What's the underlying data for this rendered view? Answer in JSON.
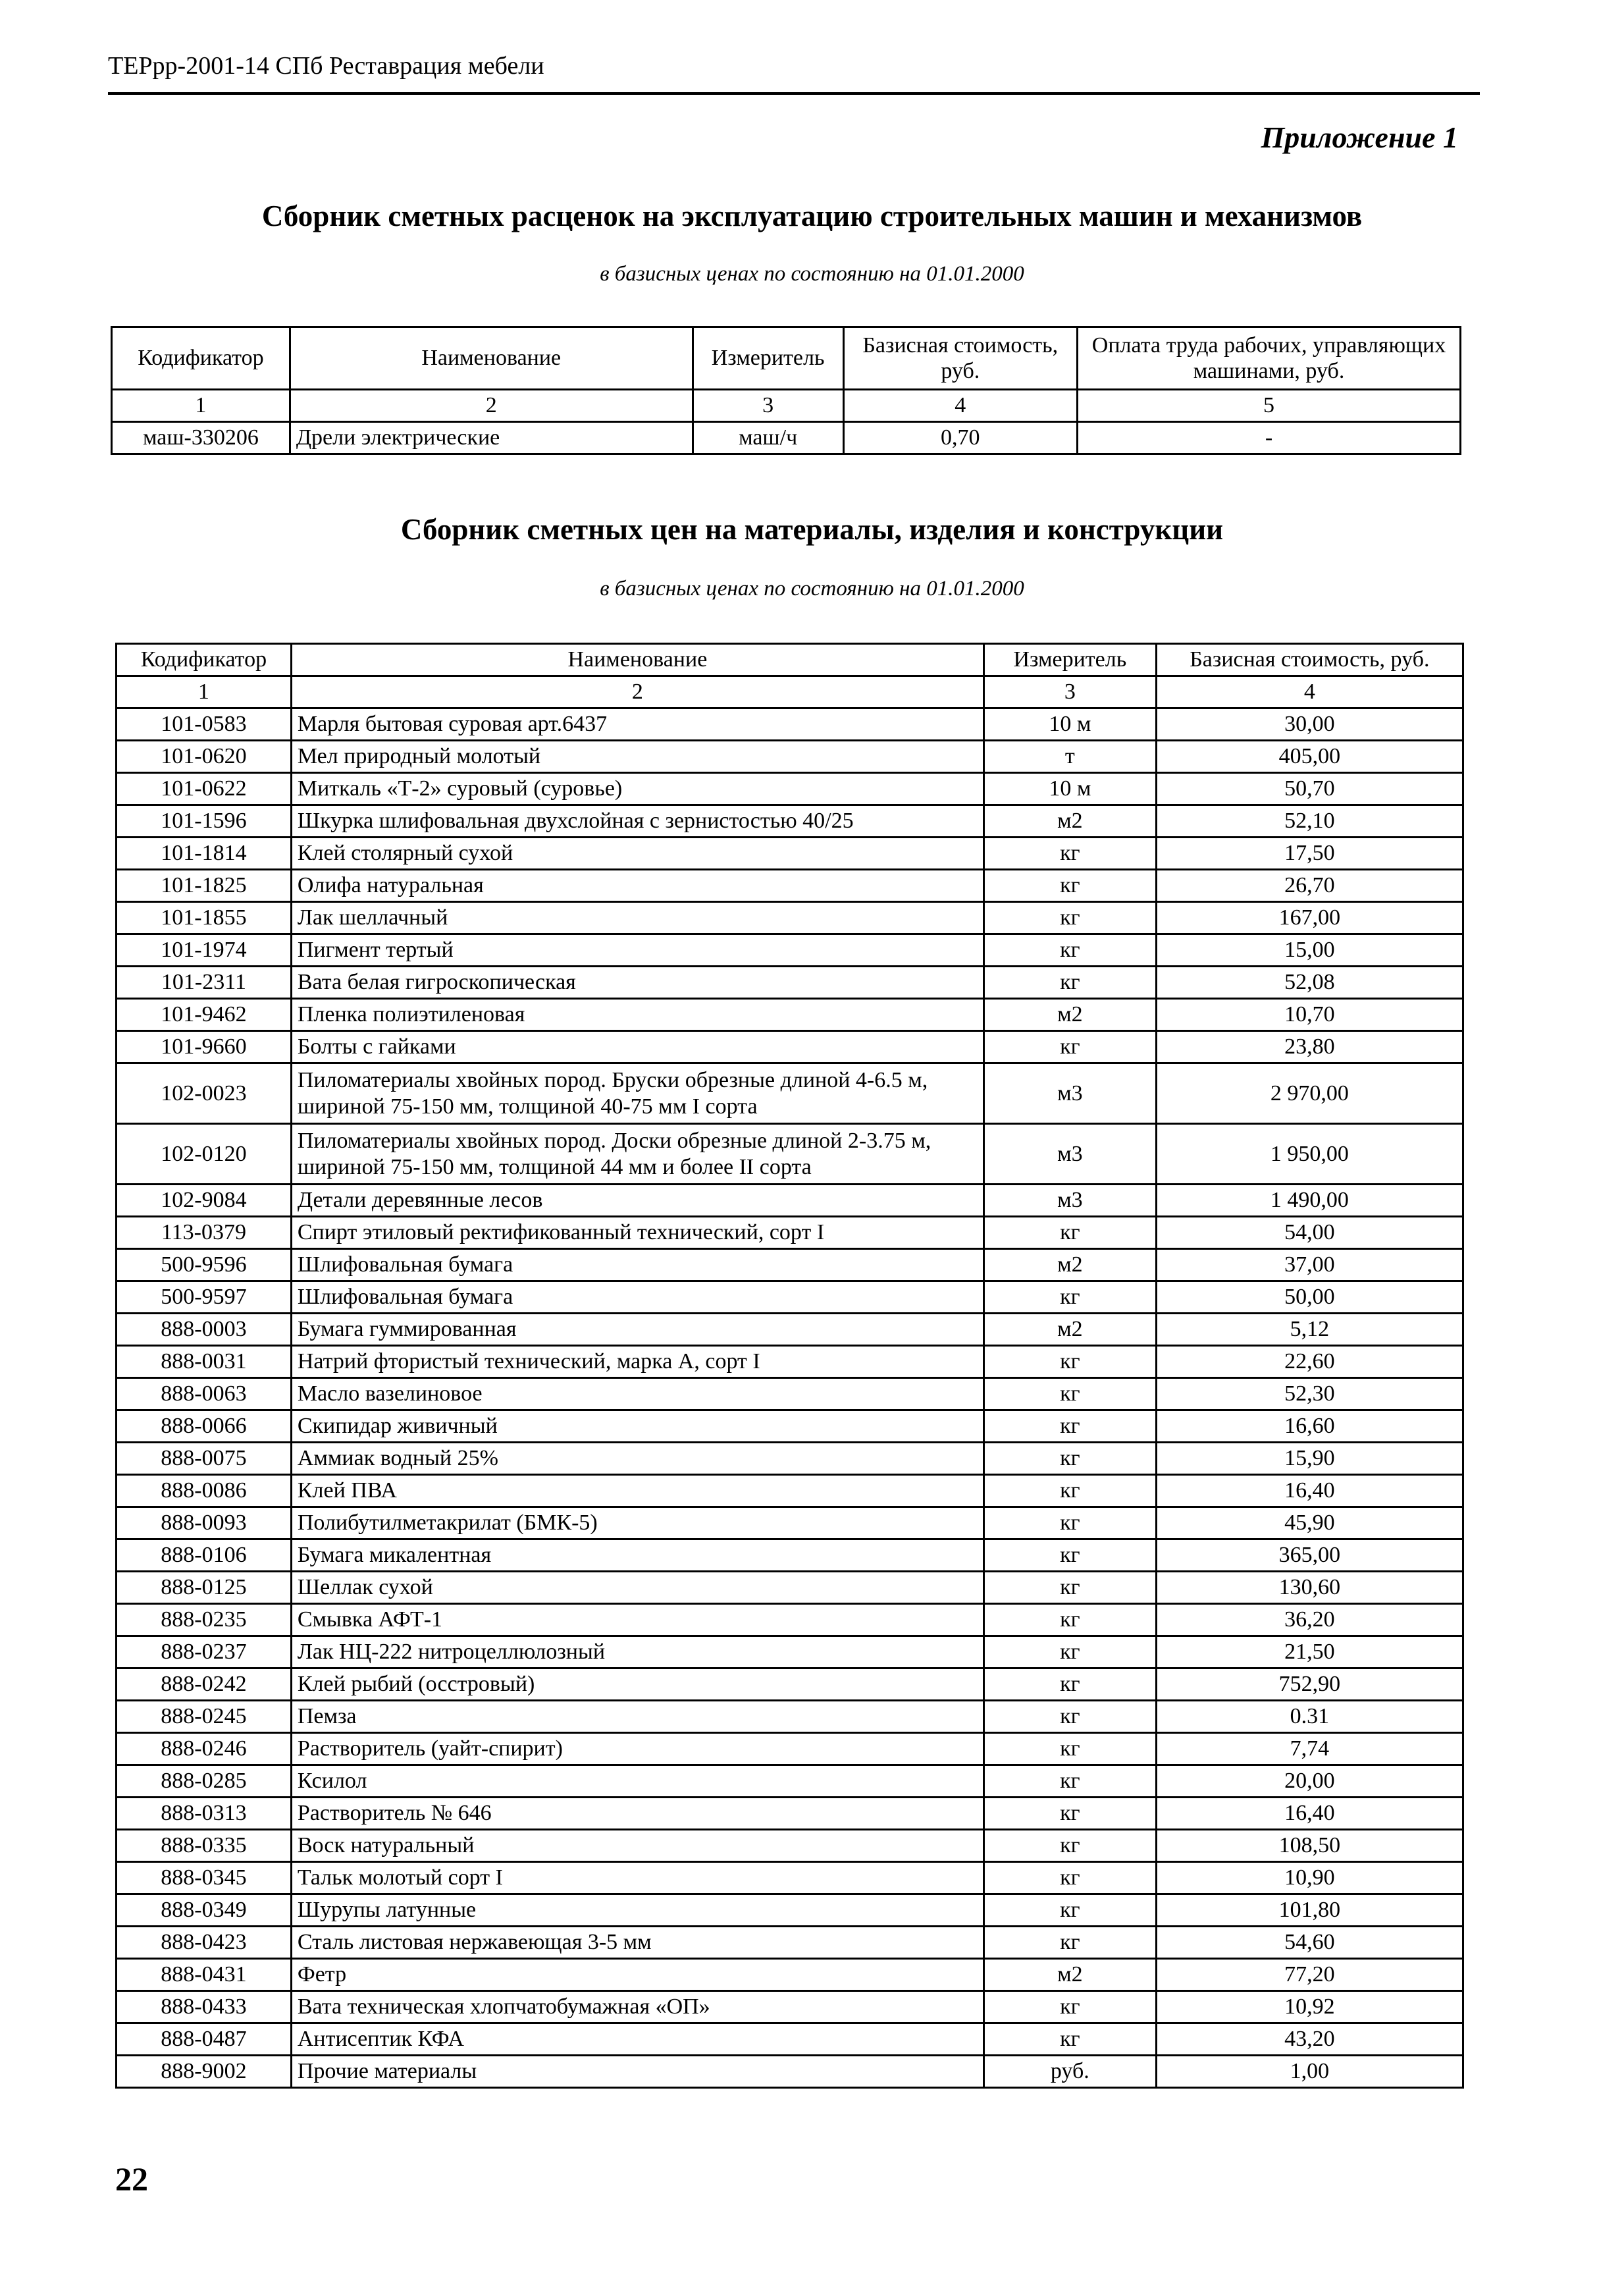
{
  "header": {
    "doc_title": "ТЕРрр-2001-14 СПб Реставрация мебели",
    "appendix": "Приложение 1"
  },
  "machines": {
    "title": "Сборник сметных расценок на эксплуатацию строительных машин и механизмов",
    "subtitle": "в базисных ценах по состоянию на 01.01.2000",
    "columns": [
      "Кодификатор",
      "Наименование",
      "Измеритель",
      "Базисная стоимость, руб.",
      "Оплата труда рабочих, управляющих машинами, руб."
    ],
    "col_numbers": [
      "1",
      "2",
      "3",
      "4",
      "5"
    ],
    "rows": [
      [
        "маш-330206",
        "Дрели электрические",
        "маш/ч",
        "0,70",
        "-"
      ]
    ]
  },
  "materials": {
    "title": "Сборник сметных цен на материалы, изделия и конструкции",
    "subtitle": "в базисных ценах по состоянию на 01.01.2000",
    "columns": [
      "Кодификатор",
      "Наименование",
      "Измеритель",
      "Базисная стоимость, руб."
    ],
    "col_numbers": [
      "1",
      "2",
      "3",
      "4"
    ],
    "rows": [
      [
        "101-0583",
        "Марля бытовая суровая арт.6437",
        "10 м",
        "30,00"
      ],
      [
        "101-0620",
        "Мел природный молотый",
        "т",
        "405,00"
      ],
      [
        "101-0622",
        "Миткаль «Т-2» суровый (суровье)",
        "10 м",
        "50,70"
      ],
      [
        "101-1596",
        "Шкурка шлифовальная двухслойная с зернистостью 40/25",
        "м2",
        "52,10"
      ],
      [
        "101-1814",
        "Клей столярный сухой",
        "кг",
        "17,50"
      ],
      [
        "101-1825",
        "Олифа натуральная",
        "кг",
        "26,70"
      ],
      [
        "101-1855",
        "Лак шеллачный",
        "кг",
        "167,00"
      ],
      [
        "101-1974",
        "Пигмент тертый",
        "кг",
        "15,00"
      ],
      [
        "101-2311",
        "Вата белая гигроскопическая",
        "кг",
        "52,08"
      ],
      [
        "101-9462",
        "Пленка полиэтиленовая",
        "м2",
        "10,70"
      ],
      [
        "101-9660",
        "Болты с гайками",
        "кг",
        "23,80"
      ],
      [
        "102-0023",
        "Пиломатериалы хвойных пород. Бруски обрезные длиной 4-6.5 м, шириной 75-150 мм, толщиной 40-75 мм I сорта",
        "м3",
        "2 970,00"
      ],
      [
        "102-0120",
        "Пиломатериалы хвойных пород. Доски обрезные длиной 2-3.75 м, шириной 75-150 мм, толщиной 44 мм и более II сорта",
        "м3",
        "1 950,00"
      ],
      [
        "102-9084",
        "Детали деревянные лесов",
        "м3",
        "1 490,00"
      ],
      [
        "113-0379",
        "Спирт этиловый ректификованный технический, сорт I",
        "кг",
        "54,00"
      ],
      [
        "500-9596",
        "Шлифовальная бумага",
        "м2",
        "37,00"
      ],
      [
        "500-9597",
        "Шлифовальная бумага",
        "кг",
        "50,00"
      ],
      [
        "888-0003",
        "Бумага гуммированная",
        "м2",
        "5,12"
      ],
      [
        "888-0031",
        "Натрий фтористый технический, марка А, сорт I",
        "кг",
        "22,60"
      ],
      [
        "888-0063",
        "Масло вазелиновое",
        "кг",
        "52,30"
      ],
      [
        "888-0066",
        "Скипидар живичный",
        "кг",
        "16,60"
      ],
      [
        "888-0075",
        "Аммиак водный 25%",
        "кг",
        "15,90"
      ],
      [
        "888-0086",
        "Клей ПВА",
        "кг",
        "16,40"
      ],
      [
        "888-0093",
        "Полибутилметакрилат (БМК-5)",
        "кг",
        "45,90"
      ],
      [
        "888-0106",
        "Бумага микалентная",
        "кг",
        "365,00"
      ],
      [
        "888-0125",
        "Шеллак сухой",
        "кг",
        "130,60"
      ],
      [
        "888-0235",
        "Смывка АФТ-1",
        "кг",
        "36,20"
      ],
      [
        "888-0237",
        "Лак НЦ-222 нитроцеллюлозный",
        "кг",
        "21,50"
      ],
      [
        "888-0242",
        "Клей рыбий (осстровый)",
        "кг",
        "752,90"
      ],
      [
        "888-0245",
        "Пемза",
        "кг",
        "0.31"
      ],
      [
        "888-0246",
        "Растворитель (уайт-спирит)",
        "кг",
        "7,74"
      ],
      [
        "888-0285",
        "Ксилол",
        "кг",
        "20,00"
      ],
      [
        "888-0313",
        "Растворитель № 646",
        "кг",
        "16,40"
      ],
      [
        "888-0335",
        "Воск натуральный",
        "кг",
        "108,50"
      ],
      [
        "888-0345",
        "Тальк молотый сорт I",
        "кг",
        "10,90"
      ],
      [
        "888-0349",
        "Шурупы латунные",
        "кг",
        "101,80"
      ],
      [
        "888-0423",
        "Сталь листовая нержавеющая   3-5 мм",
        "кг",
        "54,60"
      ],
      [
        "888-0431",
        "Фетр",
        "м2",
        "77,20"
      ],
      [
        "888-0433",
        "Вата техническая хлопчатобумажная «ОП»",
        "кг",
        "10,92"
      ],
      [
        "888-0487",
        "Антисептик КФА",
        "кг",
        "43,20"
      ],
      [
        "888-9002",
        "Прочие материалы",
        "руб.",
        "1,00"
      ]
    ]
  },
  "footer": {
    "page_number": "22"
  }
}
